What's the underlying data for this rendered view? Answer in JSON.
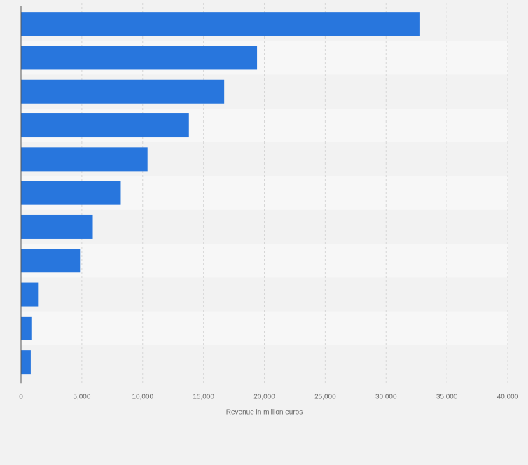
{
  "chart_data": {
    "type": "bar",
    "orientation": "horizontal",
    "categories": [
      "",
      "",
      "",
      "",
      "",
      "",
      "",
      "",
      "",
      "",
      ""
    ],
    "values": [
      32800,
      19400,
      16700,
      13800,
      10400,
      8200,
      5900,
      4850,
      1400,
      850,
      800
    ],
    "xlabel": "Revenue in million euros",
    "ylabel": "",
    "xlim": [
      0,
      40000
    ],
    "x_ticks": [
      0,
      5000,
      10000,
      15000,
      20000,
      25000,
      30000,
      35000,
      40000
    ],
    "x_tick_labels": [
      "0",
      "5,000",
      "10,000",
      "15,000",
      "20,000",
      "25,000",
      "30,000",
      "35,000",
      "40,000"
    ],
    "grid": true,
    "colors": {
      "bar": "#2876dd",
      "background": "#f2f2f2",
      "band_light": "#f7f7f7",
      "band_dark": "#f2f2f2",
      "gridline": "#d6d6d6",
      "axis": "#555555",
      "text": "#666666"
    }
  }
}
